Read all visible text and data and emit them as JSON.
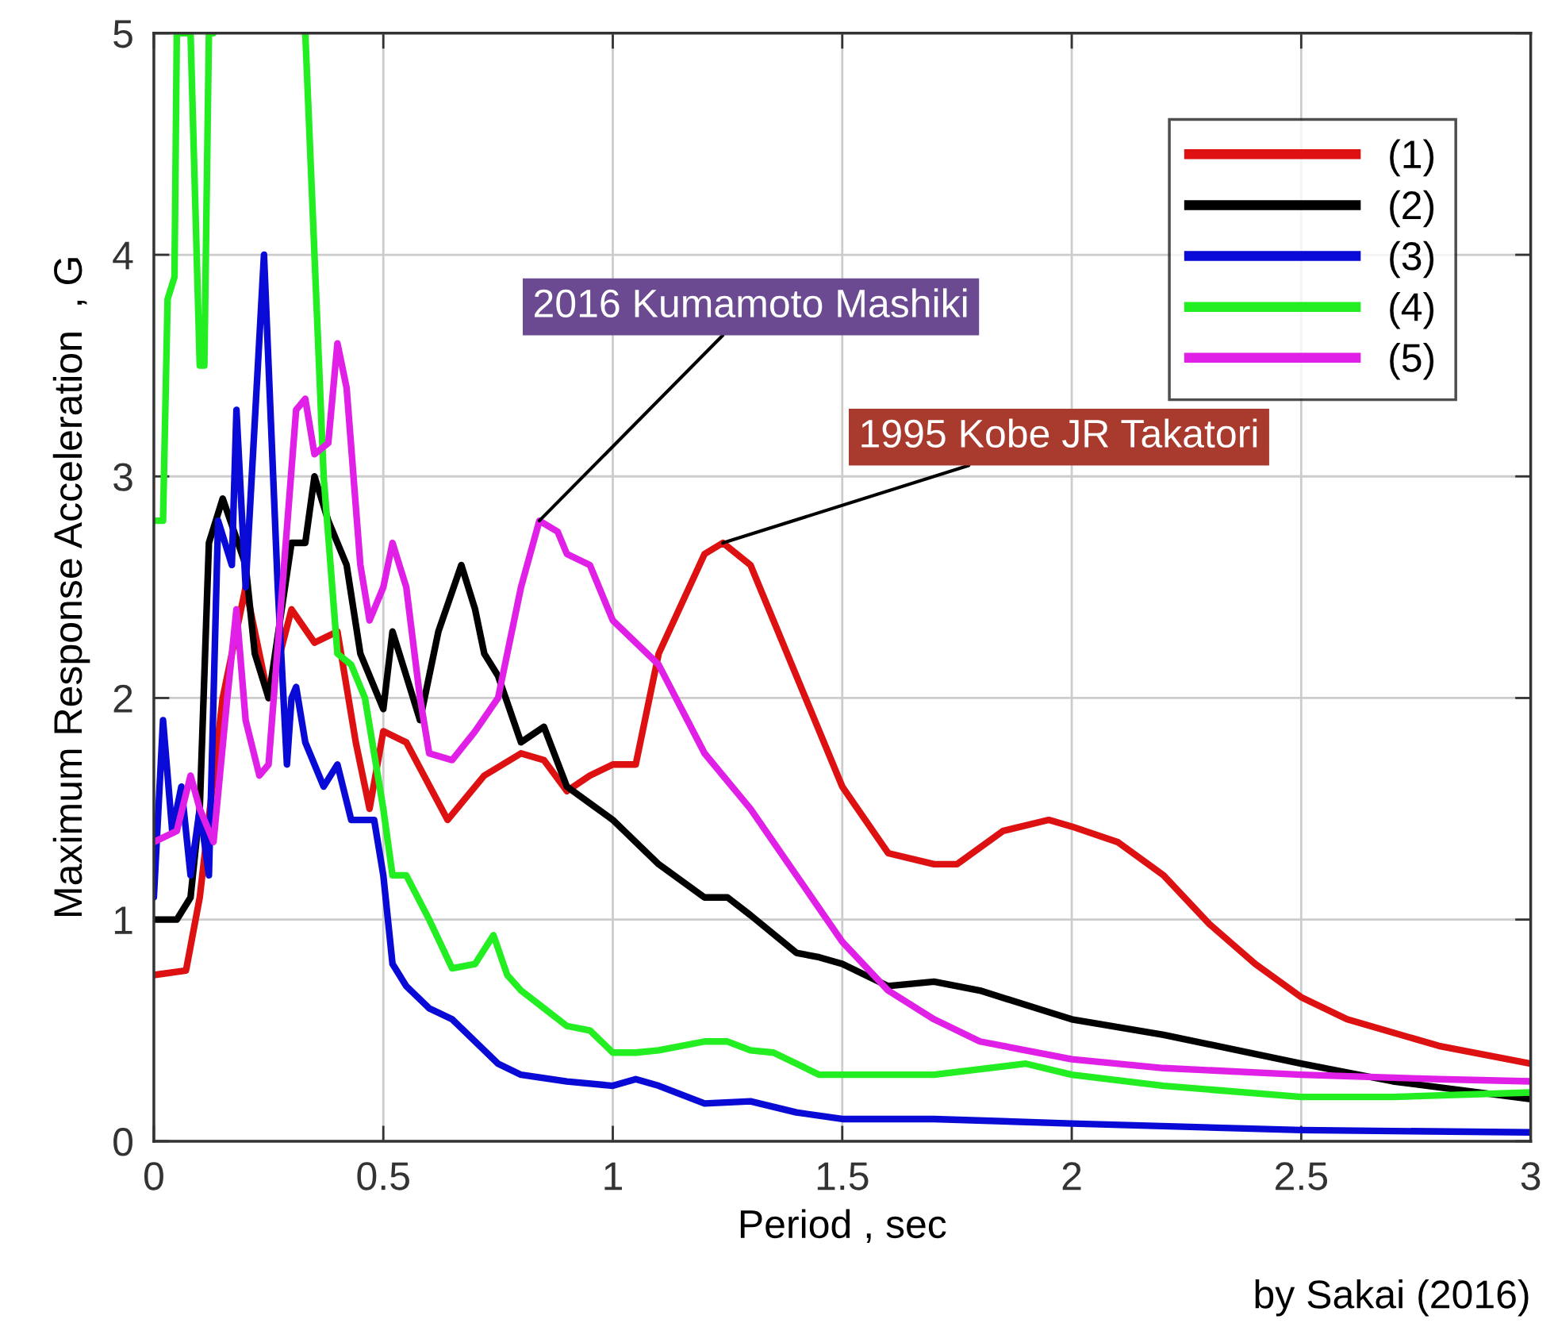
{
  "chart_data": {
    "type": "line",
    "xlabel": "Period , sec",
    "ylabel": "Maximum Response Acceleration  , G",
    "xlim": [
      0,
      3
    ],
    "ylim": [
      0,
      5
    ],
    "xticks": [
      0,
      0.5,
      1,
      1.5,
      2,
      2.5,
      3
    ],
    "yticks": [
      0,
      1,
      2,
      3,
      4,
      5
    ],
    "grid": true,
    "legend": "top right",
    "line_style": "solid",
    "marker": "none",
    "series": [
      {
        "name": "(1)",
        "color": "#dd1111",
        "x": [
          0,
          0.07,
          0.1,
          0.15,
          0.2,
          0.25,
          0.3,
          0.35,
          0.4,
          0.44,
          0.47,
          0.5,
          0.55,
          0.64,
          0.72,
          0.8,
          0.85,
          0.9,
          0.95,
          1.0,
          1.05,
          1.1,
          1.2,
          1.24,
          1.3,
          1.4,
          1.5,
          1.6,
          1.7,
          1.75,
          1.85,
          1.95,
          2.0,
          2.1,
          2.2,
          2.3,
          2.4,
          2.5,
          2.6,
          2.8,
          3.0
        ],
        "values": [
          0.75,
          0.77,
          1.1,
          2.0,
          2.5,
          2.0,
          2.4,
          2.25,
          2.3,
          1.8,
          1.5,
          1.85,
          1.8,
          1.45,
          1.65,
          1.75,
          1.72,
          1.58,
          1.65,
          1.7,
          1.7,
          2.2,
          2.65,
          2.7,
          2.6,
          2.1,
          1.6,
          1.3,
          1.25,
          1.25,
          1.4,
          1.45,
          1.42,
          1.35,
          1.2,
          0.98,
          0.8,
          0.65,
          0.55,
          0.43,
          0.35
        ]
      },
      {
        "name": "(2)",
        "color": "#000000",
        "x": [
          0,
          0.05,
          0.08,
          0.1,
          0.12,
          0.15,
          0.2,
          0.22,
          0.25,
          0.3,
          0.33,
          0.35,
          0.38,
          0.42,
          0.45,
          0.5,
          0.52,
          0.55,
          0.58,
          0.62,
          0.67,
          0.7,
          0.72,
          0.75,
          0.8,
          0.85,
          0.9,
          1.0,
          1.1,
          1.2,
          1.25,
          1.3,
          1.4,
          1.45,
          1.5,
          1.6,
          1.7,
          1.8,
          2.0,
          2.2,
          2.5,
          2.7,
          3.0
        ],
        "values": [
          1.0,
          1.0,
          1.1,
          1.5,
          2.7,
          2.9,
          2.6,
          2.2,
          2.0,
          2.7,
          2.7,
          3.0,
          2.8,
          2.6,
          2.2,
          1.95,
          2.3,
          2.1,
          1.9,
          2.3,
          2.6,
          2.4,
          2.2,
          2.1,
          1.8,
          1.87,
          1.6,
          1.45,
          1.25,
          1.1,
          1.1,
          1.02,
          0.85,
          0.83,
          0.8,
          0.7,
          0.72,
          0.68,
          0.55,
          0.48,
          0.35,
          0.27,
          0.19
        ]
      },
      {
        "name": "(3)",
        "color": "#0a0ad6",
        "x": [
          0,
          0.02,
          0.04,
          0.06,
          0.08,
          0.1,
          0.12,
          0.14,
          0.17,
          0.18,
          0.2,
          0.24,
          0.27,
          0.29,
          0.3,
          0.31,
          0.33,
          0.37,
          0.4,
          0.43,
          0.46,
          0.48,
          0.5,
          0.52,
          0.55,
          0.6,
          0.65,
          0.7,
          0.75,
          0.8,
          0.9,
          1.0,
          1.05,
          1.1,
          1.2,
          1.3,
          1.4,
          1.5,
          1.7,
          2.0,
          2.5,
          3.0
        ],
        "values": [
          1.1,
          1.9,
          1.4,
          1.6,
          1.2,
          1.5,
          1.2,
          2.8,
          2.6,
          3.3,
          2.5,
          4.0,
          2.5,
          1.7,
          2.0,
          2.05,
          1.8,
          1.6,
          1.7,
          1.45,
          1.45,
          1.45,
          1.2,
          0.8,
          0.7,
          0.6,
          0.55,
          0.45,
          0.35,
          0.3,
          0.27,
          0.25,
          0.28,
          0.25,
          0.17,
          0.18,
          0.13,
          0.1,
          0.1,
          0.08,
          0.05,
          0.04
        ]
      },
      {
        "name": "(4)",
        "color": "#22ee22",
        "x": [
          0,
          0.02,
          0.03,
          0.045,
          0.05,
          0.07,
          0.08,
          0.1,
          0.11,
          0.12,
          0.13,
          0.14,
          0.33,
          0.35,
          0.37,
          0.4,
          0.43,
          0.46,
          0.5,
          0.52,
          0.55,
          0.6,
          0.65,
          0.7,
          0.74,
          0.77,
          0.8,
          0.85,
          0.9,
          0.95,
          1.0,
          1.05,
          1.1,
          1.2,
          1.25,
          1.3,
          1.35,
          1.45,
          1.5,
          1.7,
          1.9,
          2.0,
          2.2,
          2.5,
          2.7,
          3.0
        ],
        "values": [
          2.8,
          2.8,
          3.8,
          3.9,
          5,
          5,
          5,
          3.5,
          3.5,
          5,
          5,
          null,
          5,
          4.0,
          3.0,
          2.2,
          2.15,
          2.0,
          1.5,
          1.2,
          1.2,
          1.0,
          0.78,
          0.8,
          0.93,
          0.75,
          0.68,
          0.6,
          0.52,
          0.5,
          0.4,
          0.4,
          0.41,
          0.45,
          0.45,
          0.41,
          0.4,
          0.3,
          0.3,
          0.3,
          0.35,
          0.3,
          0.25,
          0.2,
          0.2,
          0.22
        ]
      },
      {
        "name": "(5)",
        "color": "#e020e6",
        "x": [
          0,
          0.05,
          0.08,
          0.1,
          0.13,
          0.16,
          0.18,
          0.2,
          0.23,
          0.25,
          0.28,
          0.31,
          0.33,
          0.35,
          0.38,
          0.4,
          0.42,
          0.45,
          0.47,
          0.5,
          0.52,
          0.55,
          0.58,
          0.6,
          0.65,
          0.7,
          0.75,
          0.8,
          0.84,
          0.88,
          0.9,
          0.95,
          1.0,
          1.1,
          1.2,
          1.3,
          1.4,
          1.5,
          1.6,
          1.7,
          1.8,
          2.0,
          2.2,
          2.5,
          2.8,
          3.0
        ],
        "values": [
          1.35,
          1.4,
          1.65,
          1.5,
          1.35,
          2.0,
          2.4,
          1.9,
          1.65,
          1.7,
          2.5,
          3.3,
          3.35,
          3.1,
          3.15,
          3.6,
          3.4,
          2.6,
          2.35,
          2.5,
          2.7,
          2.5,
          2.0,
          1.75,
          1.72,
          1.85,
          2.0,
          2.5,
          2.8,
          2.75,
          2.65,
          2.6,
          2.35,
          2.15,
          1.75,
          1.5,
          1.2,
          0.9,
          0.68,
          0.55,
          0.45,
          0.37,
          0.33,
          0.3,
          0.28,
          0.27
        ]
      }
    ],
    "annotations": [
      {
        "text": "2016 Kumamoto Mashiki",
        "x": 0.84,
        "y": 2.8
      },
      {
        "text": "1995 Kobe JR Takatori",
        "x": 1.24,
        "y": 2.7
      },
      "by Sakai (2016)"
    ]
  }
}
